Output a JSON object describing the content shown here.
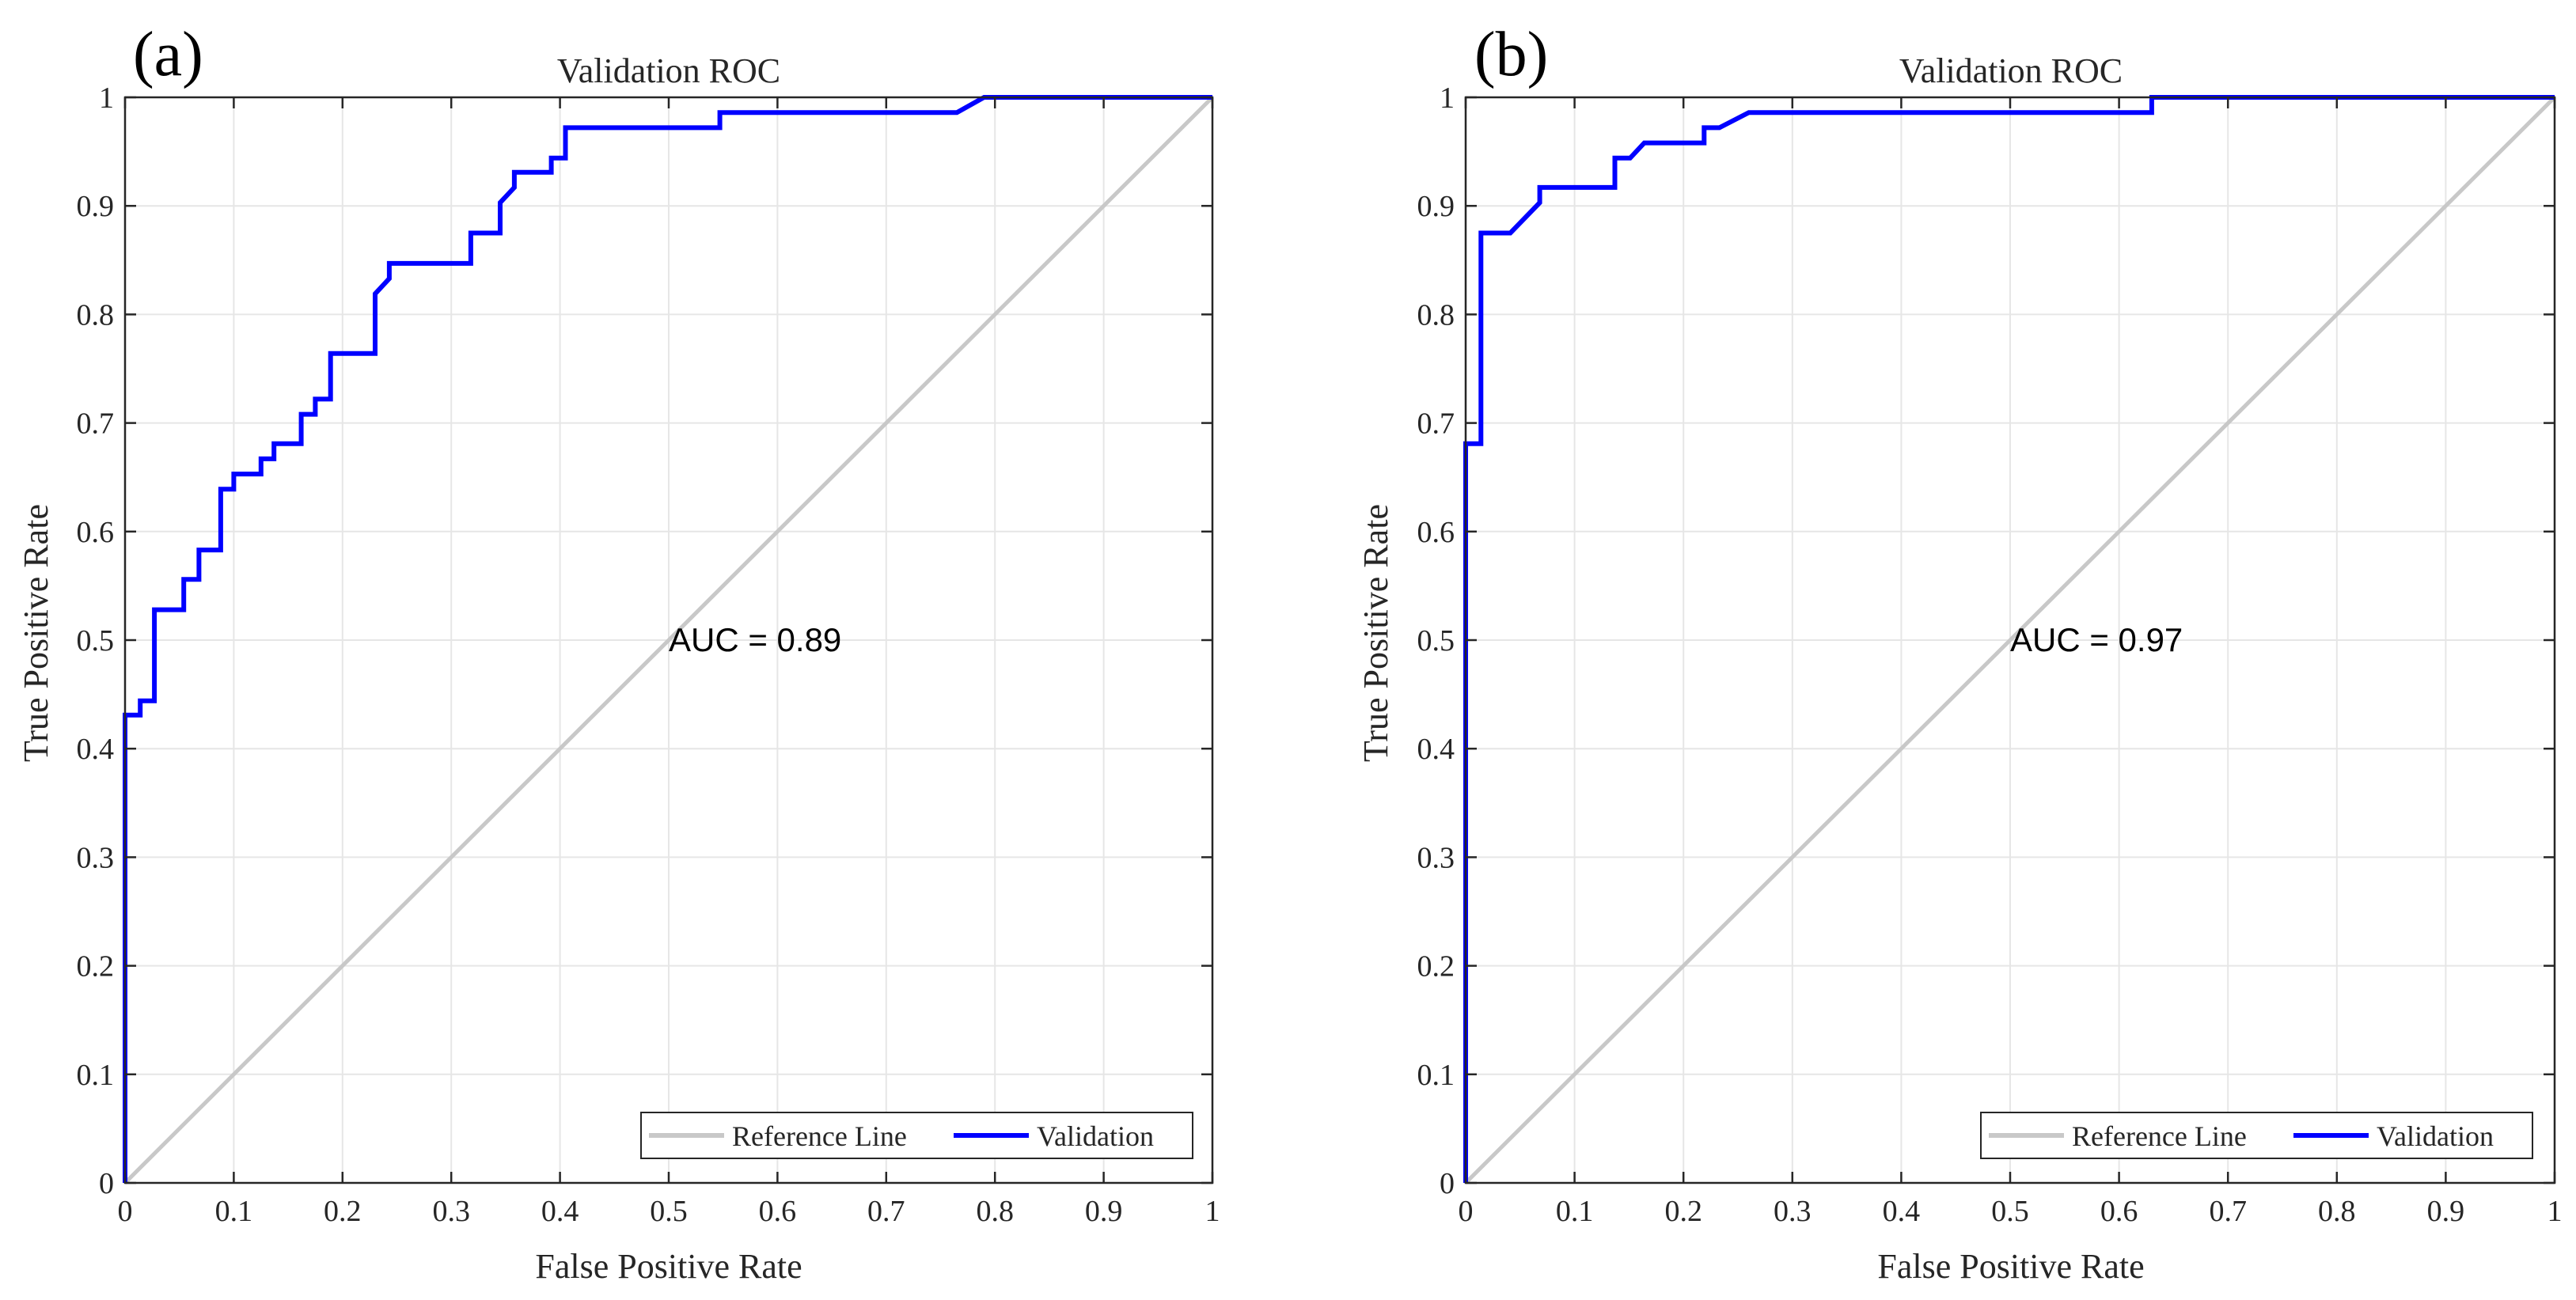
{
  "colors": {
    "reference": "#c8c8c8",
    "validation": "#0000ff",
    "axis": "#262626",
    "grid": "#e6e6e6"
  },
  "chart_data": [
    {
      "type": "line",
      "panel_label": "(a)",
      "title": "Validation ROC",
      "xlabel": "False Positive Rate",
      "ylabel": "True Positive Rate",
      "xlim": [
        0,
        1
      ],
      "ylim": [
        0,
        1
      ],
      "xticks": [
        "0",
        "0.1",
        "0.2",
        "0.3",
        "0.4",
        "0.5",
        "0.6",
        "0.7",
        "0.8",
        "0.9",
        "1"
      ],
      "yticks": [
        "0",
        "0.1",
        "0.2",
        "0.3",
        "0.4",
        "0.5",
        "0.6",
        "0.7",
        "0.8",
        "0.9",
        "1"
      ],
      "grid": true,
      "annotation": "AUC = 0.89",
      "annotation_at": [
        0.5,
        0.5
      ],
      "legend_position": "bottom-right",
      "series": [
        {
          "name": "Reference Line",
          "x": [
            0,
            1
          ],
          "y": [
            0,
            1
          ]
        },
        {
          "name": "Validation",
          "x": [
            0,
            0,
            0.014,
            0.014,
            0.027,
            0.027,
            0.054,
            0.054,
            0.068,
            0.068,
            0.088,
            0.088,
            0.1,
            0.1,
            0.125,
            0.125,
            0.137,
            0.137,
            0.162,
            0.162,
            0.175,
            0.175,
            0.189,
            0.189,
            0.23,
            0.23,
            0.243,
            0.243,
            0.318,
            0.318,
            0.345,
            0.345,
            0.358,
            0.358,
            0.392,
            0.392,
            0.405,
            0.405,
            0.547,
            0.547,
            0.765,
            0.79,
            1
          ],
          "y": [
            0,
            0.431,
            0.431,
            0.444,
            0.444,
            0.528,
            0.528,
            0.556,
            0.556,
            0.583,
            0.583,
            0.639,
            0.639,
            0.653,
            0.653,
            0.667,
            0.667,
            0.681,
            0.681,
            0.708,
            0.708,
            0.722,
            0.722,
            0.764,
            0.764,
            0.819,
            0.833,
            0.847,
            0.847,
            0.875,
            0.875,
            0.903,
            0.917,
            0.931,
            0.931,
            0.944,
            0.944,
            0.972,
            0.972,
            0.986,
            0.986,
            1,
            1
          ]
        }
      ]
    },
    {
      "type": "line",
      "panel_label": "(b)",
      "title": "Validation ROC",
      "xlabel": "False Positive Rate",
      "ylabel": "True Positive Rate",
      "xlim": [
        0,
        1
      ],
      "ylim": [
        0,
        1
      ],
      "xticks": [
        "0",
        "0.1",
        "0.2",
        "0.3",
        "0.4",
        "0.5",
        "0.6",
        "0.7",
        "0.8",
        "0.9",
        "1"
      ],
      "yticks": [
        "0",
        "0.1",
        "0.2",
        "0.3",
        "0.4",
        "0.5",
        "0.6",
        "0.7",
        "0.8",
        "0.9",
        "1"
      ],
      "grid": true,
      "annotation": "AUC = 0.97",
      "annotation_at": [
        0.5,
        0.5
      ],
      "legend_position": "bottom-right",
      "series": [
        {
          "name": "Reference Line",
          "x": [
            0,
            1
          ],
          "y": [
            0,
            1
          ]
        },
        {
          "name": "Validation",
          "x": [
            0,
            0,
            0.014,
            0.014,
            0.041,
            0.068,
            0.068,
            0.137,
            0.137,
            0.151,
            0.164,
            0.164,
            0.219,
            0.219,
            0.233,
            0.26,
            0.26,
            0.63,
            0.63,
            1
          ],
          "y": [
            0,
            0.681,
            0.681,
            0.875,
            0.875,
            0.903,
            0.917,
            0.917,
            0.944,
            0.944,
            0.958,
            0.958,
            0.958,
            0.972,
            0.972,
            0.986,
            0.986,
            0.986,
            1,
            1
          ]
        }
      ]
    }
  ]
}
